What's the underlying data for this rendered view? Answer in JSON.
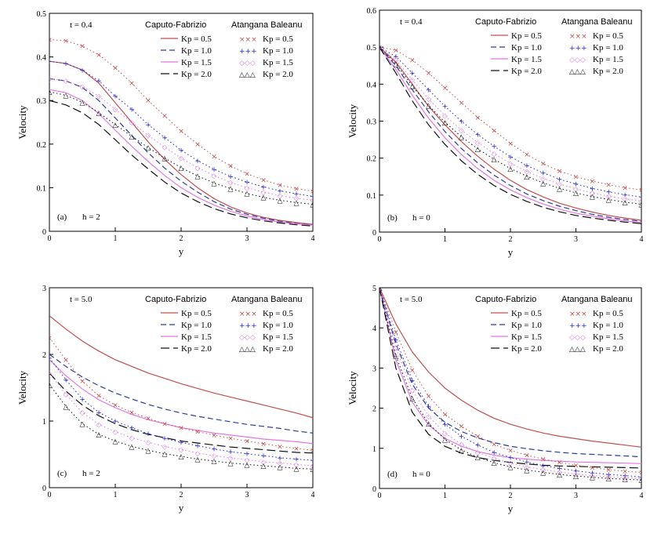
{
  "chart_data": [
    {
      "type": "line",
      "panel": "(a)",
      "annotation": "t = 0.4",
      "case_label": "h = 2",
      "xlabel": "y",
      "ylabel": "Velocity",
      "xlim": [
        0,
        4
      ],
      "ylim": [
        0,
        0.5
      ],
      "xticks": [
        0,
        1,
        2,
        3,
        4
      ],
      "xtick_labels": [
        "0",
        "1",
        "2",
        "3",
        "4"
      ],
      "yticks": [
        0,
        0.1,
        0.2,
        0.3,
        0.4,
        0.5
      ],
      "ytick_labels": [
        "0",
        "0.1",
        "0.2",
        "0.3",
        "0.4",
        "0.5"
      ],
      "legend_headers": [
        "Caputo-Fabrizio",
        "Atangana Baleanu"
      ],
      "x": [
        0,
        0.25,
        0.5,
        0.75,
        1,
        1.25,
        1.5,
        1.75,
        2,
        2.25,
        2.5,
        2.75,
        3,
        3.25,
        3.5,
        3.75,
        4
      ],
      "series": [
        {
          "name": "Kp = 0.5",
          "model": "Caputo-Fabrizio",
          "color": "#c0504d",
          "style": "solid",
          "values": [
            0.39,
            0.385,
            0.37,
            0.34,
            0.295,
            0.25,
            0.205,
            0.165,
            0.13,
            0.1,
            0.075,
            0.056,
            0.042,
            0.032,
            0.025,
            0.02,
            0.016
          ]
        },
        {
          "name": "Kp = 1.0",
          "model": "Caputo-Fabrizio",
          "color": "#2d3c9c",
          "style": "dash",
          "values": [
            0.35,
            0.345,
            0.33,
            0.3,
            0.26,
            0.22,
            0.18,
            0.145,
            0.115,
            0.09,
            0.068,
            0.051,
            0.039,
            0.03,
            0.023,
            0.018,
            0.015
          ]
        },
        {
          "name": "Kp = 1.5",
          "model": "Caputo-Fabrizio",
          "color": "#e377e3",
          "style": "solid",
          "values": [
            0.325,
            0.318,
            0.3,
            0.27,
            0.232,
            0.195,
            0.16,
            0.128,
            0.1,
            0.078,
            0.06,
            0.046,
            0.035,
            0.027,
            0.021,
            0.017,
            0.014
          ]
        },
        {
          "name": "Kp = 2.0",
          "model": "Caputo-Fabrizio",
          "color": "#111111",
          "style": "longdash",
          "values": [
            0.3,
            0.29,
            0.272,
            0.245,
            0.21,
            0.175,
            0.143,
            0.113,
            0.088,
            0.068,
            0.052,
            0.04,
            0.031,
            0.024,
            0.019,
            0.015,
            0.012
          ]
        },
        {
          "name": "Kp = 0.5",
          "model": "Atangana Baleanu",
          "color": "#c0504d",
          "marker": "×",
          "values": [
            0.44,
            0.437,
            0.425,
            0.405,
            0.375,
            0.34,
            0.3,
            0.265,
            0.23,
            0.2,
            0.172,
            0.15,
            0.132,
            0.118,
            0.106,
            0.098,
            0.092
          ]
        },
        {
          "name": "Kp = 1.0",
          "model": "Atangana Baleanu",
          "color": "#2424d4",
          "marker": "+",
          "values": [
            0.39,
            0.385,
            0.37,
            0.345,
            0.31,
            0.28,
            0.245,
            0.215,
            0.186,
            0.162,
            0.142,
            0.126,
            0.113,
            0.102,
            0.093,
            0.086,
            0.08
          ]
        },
        {
          "name": "Kp = 1.5",
          "model": "Atangana Baleanu",
          "color": "#e377e3",
          "marker": "◇",
          "values": [
            0.35,
            0.345,
            0.332,
            0.31,
            0.28,
            0.25,
            0.22,
            0.193,
            0.168,
            0.146,
            0.128,
            0.112,
            0.1,
            0.09,
            0.082,
            0.076,
            0.071
          ]
        },
        {
          "name": "Kp = 2.0",
          "model": "Atangana Baleanu",
          "color": "#111111",
          "marker": "△",
          "values": [
            0.32,
            0.312,
            0.296,
            0.272,
            0.245,
            0.218,
            0.192,
            0.168,
            0.146,
            0.127,
            0.111,
            0.098,
            0.087,
            0.078,
            0.071,
            0.066,
            0.062
          ]
        }
      ]
    },
    {
      "type": "line",
      "panel": "(b)",
      "annotation": "t = 0.4",
      "case_label": "h = 0",
      "xlabel": "y",
      "ylabel": "Velocity",
      "xlim": [
        0,
        4
      ],
      "ylim": [
        0,
        0.6
      ],
      "xticks": [
        0,
        1,
        2,
        3,
        4
      ],
      "xtick_labels": [
        "0",
        "1",
        "2",
        "3",
        "4"
      ],
      "yticks": [
        0,
        0.1,
        0.2,
        0.3,
        0.4,
        0.5,
        0.6
      ],
      "ytick_labels": [
        "0",
        "0.1",
        "0.2",
        "0.3",
        "0.4",
        "0.5",
        "0.6"
      ],
      "legend_headers": [
        "Caputo-Fabrizio",
        "Atangana Baleanu"
      ],
      "x": [
        0,
        0.25,
        0.5,
        0.75,
        1,
        1.25,
        1.5,
        1.75,
        2,
        2.25,
        2.5,
        2.75,
        3,
        3.25,
        3.5,
        3.75,
        4
      ],
      "series": [
        {
          "name": "Kp = 0.5",
          "model": "Caputo-Fabrizio",
          "color": "#c0504d",
          "style": "solid",
          "values": [
            0.5,
            0.46,
            0.4,
            0.34,
            0.29,
            0.245,
            0.205,
            0.17,
            0.14,
            0.115,
            0.095,
            0.078,
            0.065,
            0.054,
            0.045,
            0.038,
            0.032
          ]
        },
        {
          "name": "Kp = 1.0",
          "model": "Caputo-Fabrizio",
          "color": "#2d3c9c",
          "style": "dash",
          "values": [
            0.5,
            0.45,
            0.385,
            0.325,
            0.272,
            0.226,
            0.187,
            0.154,
            0.126,
            0.103,
            0.085,
            0.07,
            0.058,
            0.048,
            0.04,
            0.034,
            0.029
          ]
        },
        {
          "name": "Kp = 1.5",
          "model": "Caputo-Fabrizio",
          "color": "#e377e3",
          "style": "solid",
          "values": [
            0.5,
            0.44,
            0.37,
            0.308,
            0.255,
            0.21,
            0.172,
            0.14,
            0.114,
            0.093,
            0.076,
            0.062,
            0.051,
            0.043,
            0.036,
            0.03,
            0.026
          ]
        },
        {
          "name": "Kp = 2.0",
          "model": "Caputo-Fabrizio",
          "color": "#111111",
          "style": "longdash",
          "values": [
            0.5,
            0.43,
            0.355,
            0.29,
            0.237,
            0.193,
            0.156,
            0.126,
            0.102,
            0.083,
            0.067,
            0.055,
            0.045,
            0.038,
            0.032,
            0.027,
            0.023
          ]
        },
        {
          "name": "Kp = 0.5",
          "model": "Atangana Baleanu",
          "color": "#c0504d",
          "marker": "×",
          "values": [
            0.5,
            0.492,
            0.465,
            0.43,
            0.39,
            0.35,
            0.31,
            0.275,
            0.24,
            0.21,
            0.185,
            0.165,
            0.15,
            0.138,
            0.128,
            0.12,
            0.114
          ]
        },
        {
          "name": "Kp = 1.0",
          "model": "Atangana Baleanu",
          "color": "#2424d4",
          "marker": "+",
          "values": [
            0.5,
            0.475,
            0.43,
            0.385,
            0.34,
            0.3,
            0.264,
            0.232,
            0.204,
            0.18,
            0.16,
            0.143,
            0.13,
            0.118,
            0.109,
            0.101,
            0.095
          ]
        },
        {
          "name": "Kp = 1.5",
          "model": "Atangana Baleanu",
          "color": "#e377e3",
          "marker": "◇",
          "values": [
            0.5,
            0.465,
            0.412,
            0.36,
            0.315,
            0.276,
            0.242,
            0.212,
            0.186,
            0.164,
            0.145,
            0.13,
            0.117,
            0.106,
            0.097,
            0.09,
            0.084
          ]
        },
        {
          "name": "Kp = 2.0",
          "model": "Atangana Baleanu",
          "color": "#111111",
          "marker": "△",
          "values": [
            0.5,
            0.455,
            0.395,
            0.342,
            0.297,
            0.258,
            0.225,
            0.197,
            0.172,
            0.151,
            0.133,
            0.118,
            0.106,
            0.096,
            0.088,
            0.081,
            0.075
          ]
        }
      ]
    },
    {
      "type": "line",
      "panel": "(c)",
      "annotation": "t = 5.0",
      "case_label": "h = 2",
      "xlabel": "y",
      "ylabel": "Velocity",
      "xlim": [
        0,
        4
      ],
      "ylim": [
        0,
        3
      ],
      "xticks": [
        0,
        1,
        2,
        3,
        4
      ],
      "xtick_labels": [
        "0",
        "1",
        "2",
        "3",
        "4"
      ],
      "yticks": [
        0,
        1,
        2,
        3
      ],
      "ytick_labels": [
        "0",
        "1",
        "2",
        "3"
      ],
      "legend_headers": [
        "Caputo-Fabrizio",
        "Atangana Baleanu"
      ],
      "x": [
        0,
        0.25,
        0.5,
        0.75,
        1,
        1.25,
        1.5,
        1.75,
        2,
        2.25,
        2.5,
        2.75,
        3,
        3.25,
        3.5,
        3.75,
        4
      ],
      "series": [
        {
          "name": "Kp = 0.5",
          "model": "Caputo-Fabrizio",
          "color": "#c0504d",
          "style": "solid",
          "values": [
            2.58,
            2.38,
            2.2,
            2.05,
            1.92,
            1.82,
            1.72,
            1.64,
            1.56,
            1.49,
            1.42,
            1.36,
            1.3,
            1.24,
            1.18,
            1.12,
            1.05
          ]
        },
        {
          "name": "Kp = 1.0",
          "model": "Caputo-Fabrizio",
          "color": "#2d3c9c",
          "style": "dash",
          "values": [
            2.0,
            1.82,
            1.66,
            1.53,
            1.42,
            1.33,
            1.25,
            1.18,
            1.12,
            1.07,
            1.03,
            0.99,
            0.95,
            0.92,
            0.89,
            0.85,
            0.82
          ]
        },
        {
          "name": "Kp = 1.5",
          "model": "Caputo-Fabrizio",
          "color": "#e377e3",
          "style": "solid",
          "values": [
            1.92,
            1.68,
            1.48,
            1.32,
            1.2,
            1.1,
            1.02,
            0.96,
            0.9,
            0.86,
            0.82,
            0.79,
            0.76,
            0.73,
            0.71,
            0.69,
            0.66
          ]
        },
        {
          "name": "Kp = 2.0",
          "model": "Caputo-Fabrizio",
          "color": "#111111",
          "style": "longdash",
          "values": [
            1.72,
            1.45,
            1.24,
            1.08,
            0.96,
            0.87,
            0.8,
            0.75,
            0.7,
            0.67,
            0.64,
            0.61,
            0.59,
            0.57,
            0.55,
            0.53,
            0.52
          ]
        },
        {
          "name": "Kp = 0.5",
          "model": "Atangana Baleanu",
          "color": "#c0504d",
          "marker": "×",
          "values": [
            2.25,
            1.92,
            1.6,
            1.38,
            1.24,
            1.13,
            1.04,
            0.96,
            0.9,
            0.84,
            0.79,
            0.74,
            0.7,
            0.66,
            0.62,
            0.59,
            0.56
          ]
        },
        {
          "name": "Kp = 1.0",
          "model": "Atangana Baleanu",
          "color": "#2424d4",
          "marker": "+",
          "values": [
            1.95,
            1.62,
            1.33,
            1.13,
            1.0,
            0.9,
            0.81,
            0.74,
            0.68,
            0.63,
            0.58,
            0.54,
            0.51,
            0.48,
            0.45,
            0.43,
            0.41
          ]
        },
        {
          "name": "Kp = 1.5",
          "model": "Atangana Baleanu",
          "color": "#e377e3",
          "marker": "◇",
          "values": [
            1.72,
            1.4,
            1.13,
            0.95,
            0.84,
            0.75,
            0.68,
            0.62,
            0.57,
            0.52,
            0.48,
            0.45,
            0.42,
            0.39,
            0.37,
            0.35,
            0.33
          ]
        },
        {
          "name": "Kp = 2.0",
          "model": "Atangana Baleanu",
          "color": "#111111",
          "marker": "△",
          "values": [
            1.55,
            1.22,
            0.96,
            0.8,
            0.7,
            0.62,
            0.56,
            0.51,
            0.47,
            0.43,
            0.4,
            0.37,
            0.35,
            0.33,
            0.31,
            0.29,
            0.28
          ]
        }
      ]
    },
    {
      "type": "line",
      "panel": "(d)",
      "annotation": "t = 5.0",
      "case_label": "h = 0",
      "xlabel": "y",
      "ylabel": "Velocity",
      "xlim": [
        0,
        4
      ],
      "ylim": [
        0,
        5
      ],
      "xticks": [
        0,
        1,
        2,
        3,
        4
      ],
      "xtick_labels": [
        "0",
        "1",
        "2",
        "3",
        "4"
      ],
      "yticks": [
        0,
        1,
        2,
        3,
        4,
        5
      ],
      "ytick_labels": [
        "0",
        "1",
        "2",
        "3",
        "4",
        "5"
      ],
      "legend_headers": [
        "Caputo-Fabrizio",
        "Atangana Baleanu"
      ],
      "x": [
        0,
        0.25,
        0.5,
        0.75,
        1,
        1.25,
        1.5,
        1.75,
        2,
        2.25,
        2.5,
        2.75,
        3,
        3.25,
        3.5,
        3.75,
        4
      ],
      "series": [
        {
          "name": "Kp = 0.5",
          "model": "Caputo-Fabrizio",
          "color": "#c0504d",
          "style": "solid",
          "values": [
            5.0,
            4.1,
            3.4,
            2.9,
            2.5,
            2.2,
            1.95,
            1.75,
            1.6,
            1.48,
            1.38,
            1.3,
            1.24,
            1.18,
            1.13,
            1.08,
            1.03
          ]
        },
        {
          "name": "Kp = 1.0",
          "model": "Caputo-Fabrizio",
          "color": "#2d3c9c",
          "style": "dash",
          "values": [
            5.0,
            3.6,
            2.6,
            2.0,
            1.65,
            1.42,
            1.26,
            1.14,
            1.05,
            0.99,
            0.94,
            0.9,
            0.87,
            0.85,
            0.83,
            0.81,
            0.79
          ]
        },
        {
          "name": "Kp = 1.5",
          "model": "Caputo-Fabrizio",
          "color": "#e377e3",
          "style": "solid",
          "values": [
            5.0,
            3.2,
            2.15,
            1.58,
            1.25,
            1.05,
            0.92,
            0.83,
            0.77,
            0.73,
            0.7,
            0.68,
            0.66,
            0.65,
            0.64,
            0.63,
            0.62
          ]
        },
        {
          "name": "Kp = 2.0",
          "model": "Caputo-Fabrizio",
          "color": "#111111",
          "style": "longdash",
          "values": [
            5.0,
            3.0,
            1.9,
            1.35,
            1.05,
            0.88,
            0.77,
            0.7,
            0.65,
            0.61,
            0.58,
            0.56,
            0.55,
            0.54,
            0.53,
            0.52,
            0.51
          ]
        },
        {
          "name": "Kp = 0.5",
          "model": "Atangana Baleanu",
          "color": "#c0504d",
          "marker": "×",
          "values": [
            5.0,
            3.9,
            2.95,
            2.3,
            1.85,
            1.55,
            1.3,
            1.1,
            0.95,
            0.83,
            0.73,
            0.65,
            0.58,
            0.52,
            0.47,
            0.43,
            0.4
          ]
        },
        {
          "name": "Kp = 1.0",
          "model": "Atangana Baleanu",
          "color": "#2424d4",
          "marker": "+",
          "values": [
            5.0,
            3.7,
            2.7,
            2.05,
            1.6,
            1.3,
            1.08,
            0.9,
            0.77,
            0.66,
            0.57,
            0.5,
            0.44,
            0.39,
            0.35,
            0.32,
            0.29
          ]
        },
        {
          "name": "Kp = 1.5",
          "model": "Atangana Baleanu",
          "color": "#e377e3",
          "marker": "◇",
          "values": [
            5.0,
            3.5,
            2.45,
            1.8,
            1.38,
            1.1,
            0.9,
            0.75,
            0.63,
            0.54,
            0.47,
            0.41,
            0.36,
            0.32,
            0.29,
            0.27,
            0.25
          ]
        },
        {
          "name": "Kp = 2.0",
          "model": "Atangana Baleanu",
          "color": "#111111",
          "marker": "△",
          "values": [
            5.0,
            3.3,
            2.25,
            1.62,
            1.22,
            0.96,
            0.78,
            0.64,
            0.54,
            0.46,
            0.4,
            0.35,
            0.31,
            0.28,
            0.25,
            0.23,
            0.21
          ]
        }
      ]
    }
  ]
}
